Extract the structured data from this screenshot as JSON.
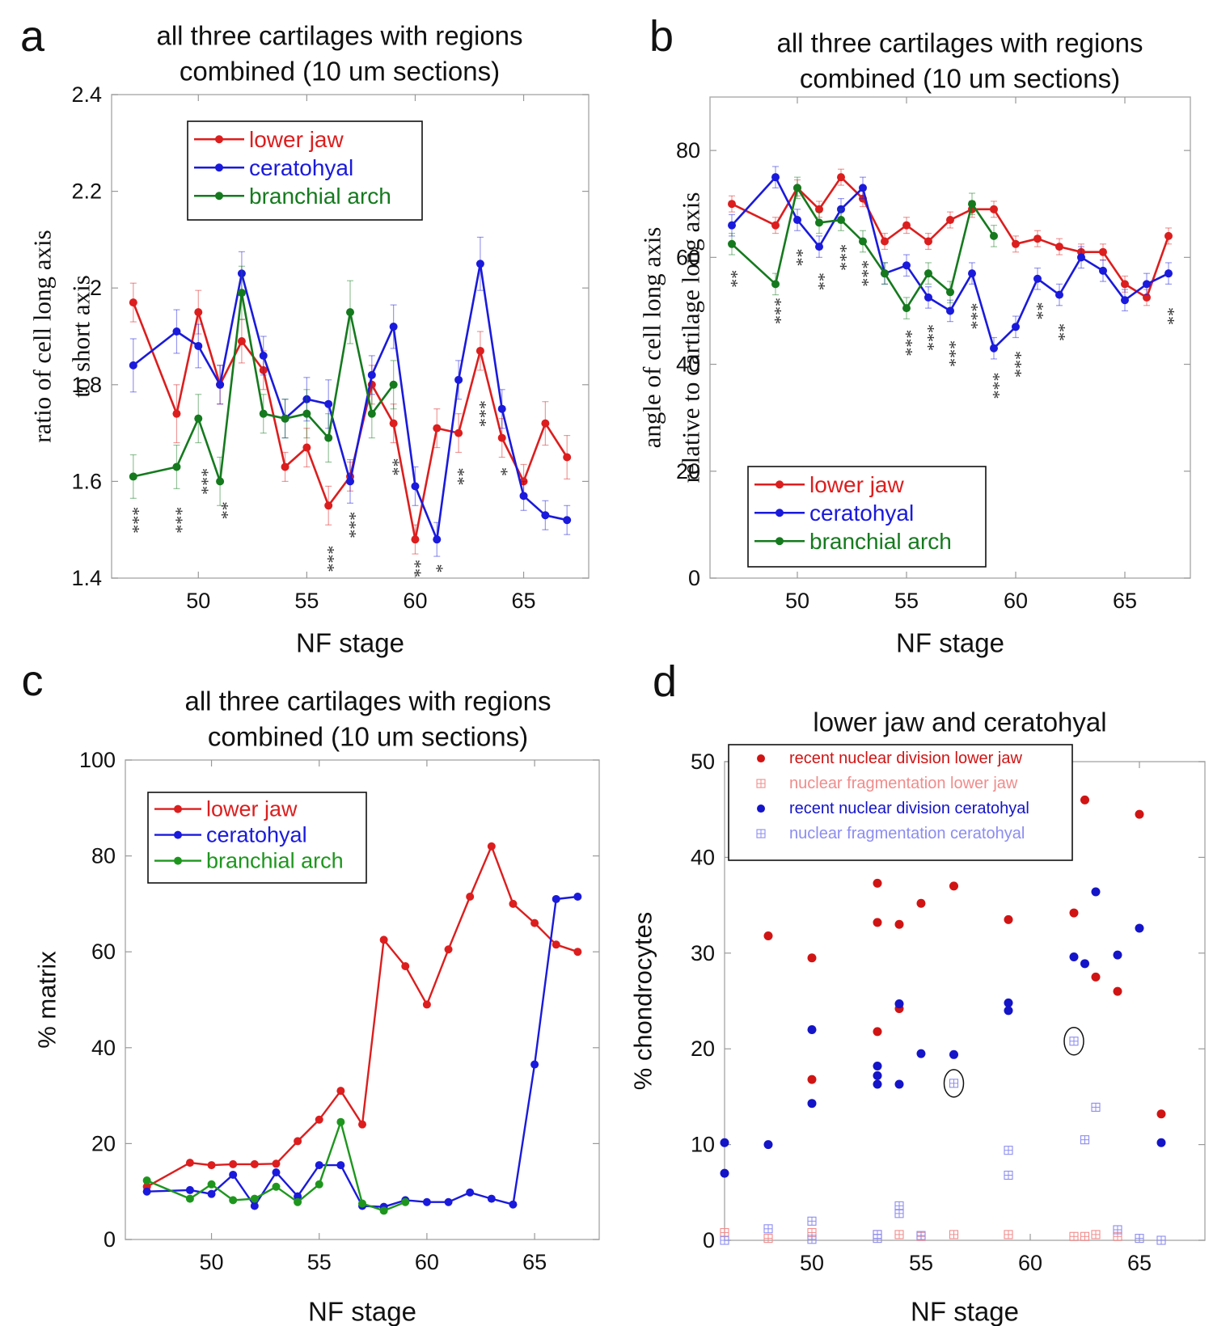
{
  "panels": [
    {
      "letter": "a",
      "title_lines": [
        "all three cartilages with regions",
        "combined (10 um sections)"
      ],
      "chart_data": {
        "type": "line",
        "xlabel": "NF stage",
        "ylabel_lines": [
          "ratio of cell long axis",
          "to short axis"
        ],
        "xlim": [
          46,
          68
        ],
        "ylim": [
          1.4,
          2.4
        ],
        "xticks": [
          50,
          55,
          60,
          65
        ],
        "yticks": [
          1.4,
          1.6,
          1.8,
          2.0,
          2.2,
          2.4
        ],
        "ytick_labels": [
          "1.4",
          "1.6",
          "1.8",
          "2",
          "2.2",
          "2.4"
        ],
        "legend": "top-left",
        "series": [
          {
            "name": "lower jaw",
            "color": "#dc1e1e",
            "x": [
              47,
              49,
              50,
              51,
              52,
              53,
              54,
              55,
              56,
              57,
              58,
              59,
              60,
              61,
              62,
              63,
              64,
              65,
              66,
              67
            ],
            "y": [
              1.97,
              1.74,
              1.95,
              1.8,
              1.89,
              1.83,
              1.63,
              1.67,
              1.55,
              1.61,
              1.8,
              1.72,
              1.48,
              1.71,
              1.7,
              1.87,
              1.69,
              1.6,
              1.72,
              1.65
            ],
            "err": [
              0.04,
              0.06,
              0.045,
              0.04,
              0.045,
              0.04,
              0.03,
              0.04,
              0.04,
              0.03,
              0.04,
              0.04,
              0.03,
              0.04,
              0.04,
              0.04,
              0.04,
              0.035,
              0.045,
              0.045
            ]
          },
          {
            "name": "ceratohyal",
            "color": "#1a1adc",
            "x": [
              47,
              49,
              50,
              51,
              52,
              53,
              54,
              55,
              56,
              57,
              58,
              59,
              60,
              61,
              62,
              63,
              64,
              65,
              66,
              67
            ],
            "y": [
              1.84,
              1.91,
              1.88,
              1.8,
              2.03,
              1.86,
              1.73,
              1.77,
              1.76,
              1.6,
              1.82,
              1.92,
              1.59,
              1.48,
              1.81,
              2.05,
              1.75,
              1.57,
              1.53,
              1.52
            ],
            "err": [
              0.055,
              0.045,
              0.045,
              0.04,
              0.045,
              0.04,
              0.04,
              0.045,
              0.05,
              0.045,
              0.04,
              0.045,
              0.04,
              0.035,
              0.04,
              0.055,
              0.04,
              0.03,
              0.03,
              0.03
            ]
          },
          {
            "name": "branchial arch",
            "color": "#157a1e",
            "x": [
              47,
              49,
              50,
              51,
              52,
              53,
              54,
              55,
              56,
              57,
              58,
              59
            ],
            "y": [
              1.61,
              1.63,
              1.73,
              1.6,
              1.99,
              1.74,
              1.73,
              1.74,
              1.69,
              1.95,
              1.74,
              1.8
            ],
            "err": [
              0.045,
              0.045,
              0.05,
              0.05,
              0.055,
              0.04,
              0.04,
              0.05,
              0.05,
              0.065,
              0.05,
              0.05
            ]
          }
        ],
        "annotations": [
          {
            "x": 47,
            "y": 1.52,
            "text": "***"
          },
          {
            "x": 49,
            "y": 1.52,
            "text": "***"
          },
          {
            "x": 50.2,
            "y": 1.6,
            "text": "***"
          },
          {
            "x": 51.1,
            "y": 1.54,
            "text": "**"
          },
          {
            "x": 56,
            "y": 1.44,
            "text": "***"
          },
          {
            "x": 57,
            "y": 1.51,
            "text": "***"
          },
          {
            "x": 59,
            "y": 1.63,
            "text": "**"
          },
          {
            "x": 60,
            "y": 1.42,
            "text": "**"
          },
          {
            "x": 61,
            "y": 1.42,
            "text": "*"
          },
          {
            "x": 62,
            "y": 1.61,
            "text": "**"
          },
          {
            "x": 63,
            "y": 1.74,
            "text": "***"
          },
          {
            "x": 64,
            "y": 1.62,
            "text": "*"
          }
        ]
      }
    },
    {
      "letter": "b",
      "title_lines": [
        "all three cartilages with regions",
        "combined (10 um sections)"
      ],
      "chart_data": {
        "type": "line",
        "xlabel": "NF stage",
        "ylabel_lines": [
          "angle of cell long axis",
          "relative to cartilage long axis"
        ],
        "xlim": [
          46,
          68
        ],
        "ylim": [
          0,
          90
        ],
        "xticks": [
          50,
          55,
          60,
          65
        ],
        "yticks": [
          0,
          20,
          40,
          60,
          80
        ],
        "ytick_labels": [
          "0",
          "20",
          "40",
          "60",
          "80"
        ],
        "legend": "bottom-left",
        "series": [
          {
            "name": "lower jaw",
            "color": "#dc1e1e",
            "x": [
              47,
              49,
              50,
              51,
              52,
              53,
              54,
              55,
              56,
              57,
              58,
              59,
              60,
              61,
              62,
              63,
              64,
              65,
              66,
              67
            ],
            "y": [
              70,
              66,
              73,
              69,
              75,
              71,
              63,
              66,
              63,
              67,
              69,
              69,
              62.5,
              63.5,
              62,
              61,
              61,
              55,
              52.5,
              64
            ],
            "err": [
              1.5,
              1.5,
              1.5,
              1.5,
              1.5,
              1.5,
              1.5,
              1.5,
              1.5,
              1.5,
              1.5,
              1.5,
              1.5,
              1.5,
              1.5,
              1.5,
              1.5,
              1.5,
              1.5,
              1.5
            ]
          },
          {
            "name": "ceratohyal",
            "color": "#1a1adc",
            "x": [
              47,
              49,
              50,
              51,
              52,
              53,
              54,
              55,
              56,
              57,
              58,
              59,
              60,
              61,
              62,
              63,
              64,
              65,
              66,
              67
            ],
            "y": [
              66,
              75,
              67,
              62,
              69,
              73,
              57,
              58.5,
              52.5,
              50,
              57,
              43,
              47,
              56,
              53,
              60,
              57.5,
              52,
              55,
              57
            ],
            "err": [
              2,
              2,
              2,
              2,
              2,
              2,
              2,
              2,
              2,
              2,
              2,
              2,
              2,
              2,
              2,
              2,
              2,
              2,
              2,
              2
            ]
          },
          {
            "name": "branchial arch",
            "color": "#157a1e",
            "x": [
              47,
              49,
              50,
              51,
              52,
              53,
              54,
              55,
              56,
              57,
              58,
              59
            ],
            "y": [
              62.5,
              55,
              73,
              66.5,
              67,
              63,
              57,
              50.5,
              57,
              53.5,
              70,
              64
            ],
            "err": [
              2,
              2,
              2,
              2,
              2,
              2,
              2,
              2,
              2,
              2,
              2,
              2
            ]
          }
        ],
        "annotations": [
          {
            "x": 47,
            "y": 56,
            "text": "**"
          },
          {
            "x": 49,
            "y": 50,
            "text": "***"
          },
          {
            "x": 50,
            "y": 60,
            "text": "**"
          },
          {
            "x": 51,
            "y": 55.5,
            "text": "**"
          },
          {
            "x": 52,
            "y": 60,
            "text": "***"
          },
          {
            "x": 53,
            "y": 57,
            "text": "***"
          },
          {
            "x": 55,
            "y": 44,
            "text": "***"
          },
          {
            "x": 56,
            "y": 45,
            "text": "***"
          },
          {
            "x": 57,
            "y": 42,
            "text": "***"
          },
          {
            "x": 58,
            "y": 49,
            "text": "***"
          },
          {
            "x": 59,
            "y": 36,
            "text": "***"
          },
          {
            "x": 60,
            "y": 40,
            "text": "***"
          },
          {
            "x": 61,
            "y": 50,
            "text": "**"
          },
          {
            "x": 62,
            "y": 46,
            "text": "**"
          },
          {
            "x": 67,
            "y": 49,
            "text": "**"
          }
        ]
      }
    },
    {
      "letter": "c",
      "title_lines": [
        "all three cartilages with regions",
        "combined (10 um sections)"
      ],
      "chart_data": {
        "type": "line",
        "xlabel": "NF stage",
        "ylabel_lines": [
          "% matrix"
        ],
        "xlim": [
          46,
          68
        ],
        "ylim": [
          0,
          100
        ],
        "xticks": [
          50,
          55,
          60,
          65
        ],
        "yticks": [
          0,
          20,
          40,
          60,
          80,
          100
        ],
        "ytick_labels": [
          "0",
          "20",
          "40",
          "60",
          "80",
          "100"
        ],
        "legend": "top-left",
        "series": [
          {
            "name": "lower jaw",
            "color": "#dc1e1e",
            "x": [
              47,
              49,
              50,
              51,
              52,
              53,
              54,
              55,
              56,
              57,
              58,
              59,
              60,
              61,
              62,
              63,
              64,
              65,
              66,
              67
            ],
            "y": [
              11,
              16,
              15.5,
              15.7,
              15.7,
              15.8,
              20.5,
              25,
              31,
              24,
              62.5,
              57,
              49,
              60.5,
              71.5,
              82,
              70,
              66,
              61.5,
              60
            ]
          },
          {
            "name": "ceratohyal",
            "color": "#1a1adc",
            "x": [
              47,
              49,
              50,
              51,
              52,
              53,
              54,
              55,
              56,
              57,
              58,
              59,
              60,
              61,
              62,
              63,
              64,
              65,
              66,
              67
            ],
            "y": [
              10,
              10.3,
              9.5,
              13.5,
              7,
              14,
              9,
              15.5,
              15.5,
              7,
              6.8,
              8.2,
              7.8,
              7.8,
              9.8,
              8.5,
              7.3,
              36.5,
              71,
              71.5
            ]
          },
          {
            "name": "branchial arch",
            "color": "#1e961e",
            "x": [
              47,
              49,
              50,
              51,
              52,
              53,
              54,
              55,
              56,
              57,
              58,
              59
            ],
            "y": [
              12.3,
              8.5,
              11.5,
              8.2,
              8.5,
              11,
              7.8,
              11.5,
              24.5,
              7.5,
              6,
              7.8
            ]
          }
        ]
      }
    },
    {
      "letter": "d",
      "title_lines": [
        "lower jaw and ceratohyal"
      ],
      "chart_data": {
        "type": "scatter",
        "xlabel": "NF stage",
        "ylabel_lines": [
          "% chondrocytes"
        ],
        "xlim": [
          46,
          68
        ],
        "ylim": [
          0,
          50
        ],
        "xticks": [
          50,
          55,
          60,
          65
        ],
        "yticks": [
          0,
          10,
          20,
          30,
          40,
          50
        ],
        "ytick_labels": [
          "0",
          "10",
          "20",
          "30",
          "40",
          "50"
        ],
        "legend": "top-left",
        "series": [
          {
            "name": "recent nuclear division lower jaw",
            "color": "#d01414",
            "marker": "dot",
            "x": [
              48,
              50,
              50,
              53,
              53,
              53,
              54,
              54,
              55,
              56.5,
              59,
              62,
              62.5,
              63,
              64,
              65,
              66
            ],
            "y": [
              31.8,
              29.5,
              16.8,
              37.3,
              33.2,
              21.8,
              33,
              24.2,
              35.2,
              37,
              33.5,
              34.2,
              46,
              27.5,
              26,
              44.5,
              13.2
            ]
          },
          {
            "name": "nuclear fragmentation lower jaw",
            "color": "#f08c8c",
            "marker": "hash",
            "x": [
              46,
              48,
              50,
              53,
              54,
              55,
              56.5,
              59,
              62,
              62.5,
              63,
              64
            ],
            "y": [
              0.8,
              0.2,
              0.8,
              0.6,
              0.6,
              0.4,
              0.6,
              0.6,
              0.4,
              0.4,
              0.6,
              0.4
            ]
          },
          {
            "name": "recent nuclear division ceratohyal",
            "color": "#1414c8",
            "marker": "dot",
            "x": [
              46,
              46,
              48,
              50,
              50,
              53,
              53,
              53,
              54,
              54,
              55,
              56.5,
              59,
              59,
              62,
              62.5,
              63,
              64,
              65,
              66
            ],
            "y": [
              10.2,
              7,
              10,
              22,
              14.3,
              18.2,
              17.2,
              16.3,
              24.7,
              16.3,
              19.5,
              19.4,
              24.8,
              24,
              29.6,
              28.9,
              36.4,
              29.8,
              32.6,
              10.2
            ]
          },
          {
            "name": "nuclear fragmentation ceratohyal",
            "color": "#8c8cf0",
            "marker": "hash",
            "x": [
              46,
              48,
              50,
              50,
              53,
              53,
              54,
              54,
              55,
              56.5,
              59,
              59,
              62,
              62.5,
              63,
              64,
              65,
              66
            ],
            "y": [
              0,
              1.2,
              2,
              0.1,
              0.6,
              0.2,
              3.6,
              2.8,
              0.5,
              16.4,
              9.4,
              6.8,
              20.8,
              10.5,
              13.9,
              1.1,
              0.2,
              0
            ],
            "circled": [
              16.4,
              20.8
            ]
          }
        ]
      }
    }
  ]
}
